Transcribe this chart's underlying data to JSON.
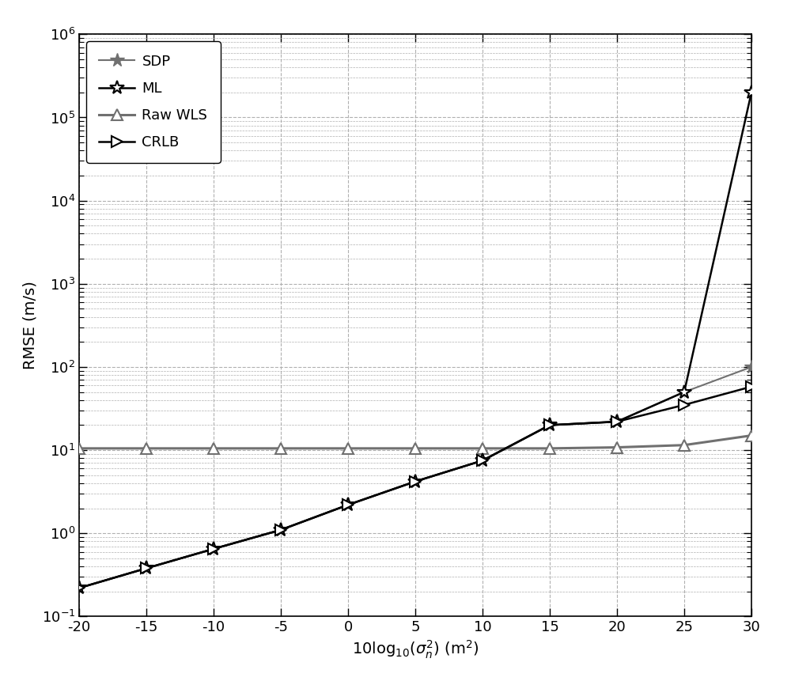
{
  "x": [
    -20,
    -15,
    -10,
    -5,
    0,
    5,
    10,
    15,
    20,
    25,
    30
  ],
  "SDP": [
    0.22,
    0.38,
    0.65,
    1.1,
    2.2,
    4.2,
    7.5,
    20.0,
    22.0,
    50.0,
    100.0
  ],
  "ML": [
    0.22,
    0.38,
    0.65,
    1.1,
    2.2,
    4.2,
    7.5,
    20.0,
    22.0,
    50.0,
    200000.0
  ],
  "RawWLS": [
    10.5,
    10.5,
    10.5,
    10.5,
    10.5,
    10.5,
    10.5,
    10.5,
    10.8,
    11.5,
    15.0
  ],
  "CRLB": [
    0.22,
    0.38,
    0.65,
    1.1,
    2.2,
    4.2,
    7.5,
    20.0,
    22.0,
    35.0,
    58.0
  ],
  "SDP_color": "#707070",
  "ML_color": "#000000",
  "RawWLS_color": "#707070",
  "CRLB_color": "#000000",
  "ylabel": "RMSE (m/s)",
  "xlabel": "10log$_{10}$($\\sigma_n^2$) (m$^2$)",
  "ylim_min": 0.1,
  "ylim_max": 1000000,
  "xlim_min": -20,
  "xlim_max": 30,
  "legend_labels": [
    "SDP",
    "ML",
    "Raw WLS",
    "CRLB"
  ],
  "background_color": "#ffffff",
  "grid_color": "#b0b0b0",
  "xticks": [
    -20,
    -15,
    -10,
    -5,
    0,
    5,
    10,
    15,
    20,
    25,
    30
  ],
  "xtick_labels": [
    "-20",
    "-15",
    "-10",
    "-5",
    "0",
    "5",
    "10",
    "15",
    "20",
    "25",
    "30"
  ]
}
